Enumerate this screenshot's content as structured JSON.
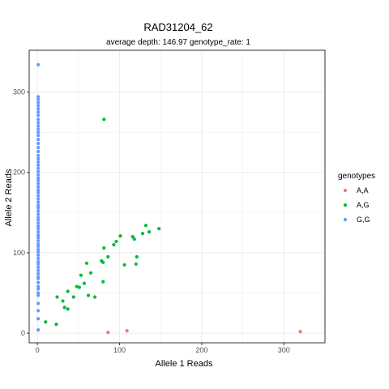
{
  "chart_data": {
    "type": "scatter",
    "title": "RAD31204_62",
    "subtitle": "average depth:  146.97  genotype_rate:  1",
    "xlabel": "Allele 1 Reads",
    "ylabel": "Allele 2 Reads",
    "xlim": [
      -10,
      350
    ],
    "ylim": [
      -12,
      352
    ],
    "xticks": [
      0,
      100,
      200,
      300
    ],
    "yticks": [
      0,
      100,
      200,
      300
    ],
    "xtick_labels": [
      "0",
      "100",
      "200",
      "300"
    ],
    "ytick_labels": [
      "0",
      "100",
      "200",
      "300"
    ],
    "grid": true,
    "legend": {
      "title": "genotypes",
      "placement": "right"
    },
    "series": [
      {
        "name": "A,A",
        "color": "#F8766D",
        "points": [
          [
            86,
            1
          ],
          [
            109,
            3
          ],
          [
            320,
            2
          ]
        ]
      },
      {
        "name": "A,G",
        "color": "#00BA38",
        "points": [
          [
            10,
            14
          ],
          [
            23,
            11
          ],
          [
            24,
            45
          ],
          [
            31,
            40
          ],
          [
            33,
            32
          ],
          [
            37,
            30
          ],
          [
            37,
            52
          ],
          [
            44,
            45
          ],
          [
            48,
            58
          ],
          [
            51,
            57
          ],
          [
            53,
            72
          ],
          [
            57,
            62
          ],
          [
            60,
            87
          ],
          [
            62,
            47
          ],
          [
            65,
            75
          ],
          [
            70,
            45
          ],
          [
            78,
            90
          ],
          [
            80,
            88
          ],
          [
            80,
            64
          ],
          [
            81,
            106
          ],
          [
            81,
            266
          ],
          [
            86,
            95
          ],
          [
            93,
            110
          ],
          [
            96,
            114
          ],
          [
            101,
            121
          ],
          [
            106,
            85
          ],
          [
            116,
            120
          ],
          [
            118,
            117
          ],
          [
            120,
            86
          ],
          [
            121,
            95
          ],
          [
            128,
            124
          ],
          [
            132,
            134
          ],
          [
            136,
            126
          ],
          [
            148,
            130
          ]
        ]
      },
      {
        "name": "G,G",
        "color": "#619CFF",
        "points": [
          [
            1,
            4
          ],
          [
            1,
            18
          ],
          [
            1,
            28
          ],
          [
            1,
            37
          ],
          [
            1,
            47
          ],
          [
            1,
            50
          ],
          [
            1,
            55
          ],
          [
            1,
            58
          ],
          [
            1,
            63
          ],
          [
            1,
            68
          ],
          [
            1,
            70
          ],
          [
            1,
            74
          ],
          [
            1,
            78
          ],
          [
            1,
            82
          ],
          [
            1,
            86
          ],
          [
            1,
            89
          ],
          [
            1,
            93
          ],
          [
            1,
            97
          ],
          [
            1,
            101
          ],
          [
            1,
            104
          ],
          [
            1,
            108
          ],
          [
            1,
            111
          ],
          [
            1,
            115
          ],
          [
            1,
            119
          ],
          [
            1,
            122
          ],
          [
            1,
            126
          ],
          [
            1,
            130
          ],
          [
            1,
            133
          ],
          [
            1,
            137
          ],
          [
            1,
            141
          ],
          [
            1,
            144
          ],
          [
            1,
            148
          ],
          [
            1,
            152
          ],
          [
            1,
            156
          ],
          [
            1,
            159
          ],
          [
            1,
            163
          ],
          [
            1,
            167
          ],
          [
            1,
            171
          ],
          [
            1,
            175
          ],
          [
            1,
            178
          ],
          [
            1,
            182
          ],
          [
            1,
            186
          ],
          [
            1,
            190
          ],
          [
            1,
            193
          ],
          [
            1,
            197
          ],
          [
            1,
            201
          ],
          [
            1,
            205
          ],
          [
            1,
            209
          ],
          [
            1,
            213
          ],
          [
            1,
            217
          ],
          [
            1,
            221
          ],
          [
            1,
            226
          ],
          [
            1,
            231
          ],
          [
            1,
            236
          ],
          [
            1,
            241
          ],
          [
            1,
            246
          ],
          [
            1,
            250
          ],
          [
            1,
            254
          ],
          [
            1,
            258
          ],
          [
            1,
            262
          ],
          [
            1,
            266
          ],
          [
            1,
            271
          ],
          [
            1,
            275
          ],
          [
            1,
            279
          ],
          [
            1,
            283
          ],
          [
            1,
            287
          ],
          [
            1,
            291
          ],
          [
            1,
            294
          ],
          [
            1,
            334
          ]
        ]
      }
    ]
  }
}
